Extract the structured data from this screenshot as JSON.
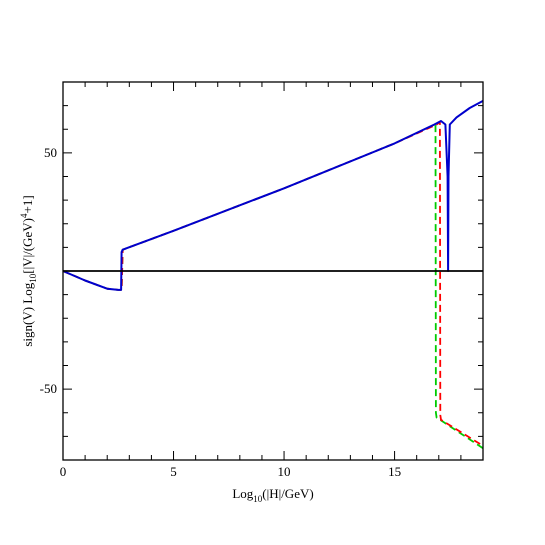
{
  "chart_data": {
    "type": "line",
    "xlabel": "Log10(|H|/GeV)",
    "ylabel": "sign(V) Log10[|V|/(GeV)4+1]",
    "xlim": [
      0,
      19
    ],
    "ylim": [
      -80,
      80
    ],
    "x_ticks": [
      0,
      5,
      10,
      15
    ],
    "y_ticks": [
      -50,
      50
    ],
    "x_tick_labels": [
      "0",
      "5",
      "10",
      "15"
    ],
    "y_tick_labels": [
      "-50",
      "50"
    ],
    "grid": false,
    "legend": "none",
    "zero_line": {
      "y": 0,
      "color": "#000000"
    },
    "series": [
      {
        "color": "#00cc00",
        "style": "dashed",
        "x": [
          0,
          1,
          2,
          2.5,
          2.65,
          2.7,
          5,
          10,
          15,
          16.6,
          16.85,
          16.87,
          16.9,
          19
        ],
        "y": [
          0,
          -4,
          -7.5,
          -8,
          -8,
          9,
          17,
          35,
          54,
          61,
          62,
          -60,
          -62,
          -75
        ]
      },
      {
        "color": "#ff0000",
        "style": "dashed",
        "x": [
          0,
          1,
          2,
          2.5,
          2.65,
          2.7,
          5,
          10,
          15,
          16.9,
          17.05,
          17.07,
          17.1,
          19
        ],
        "y": [
          0,
          -4,
          -7.5,
          -8,
          -8,
          9,
          17,
          35,
          54,
          62,
          63,
          -61,
          -63,
          -74
        ]
      },
      {
        "color": "#0000cc",
        "style": "solid",
        "x": [
          0,
          1,
          2,
          2.5,
          2.63,
          2.65,
          2.7,
          5,
          10,
          15,
          16.8,
          17.1,
          17.3,
          17.4,
          17.42,
          17.44,
          17.5,
          17.8,
          18.4,
          19
        ],
        "y": [
          0,
          -4,
          -7.5,
          -8,
          -8,
          8,
          9,
          17,
          35,
          54,
          62,
          63.5,
          62,
          40,
          0,
          40,
          62,
          65,
          69,
          72
        ]
      }
    ]
  }
}
